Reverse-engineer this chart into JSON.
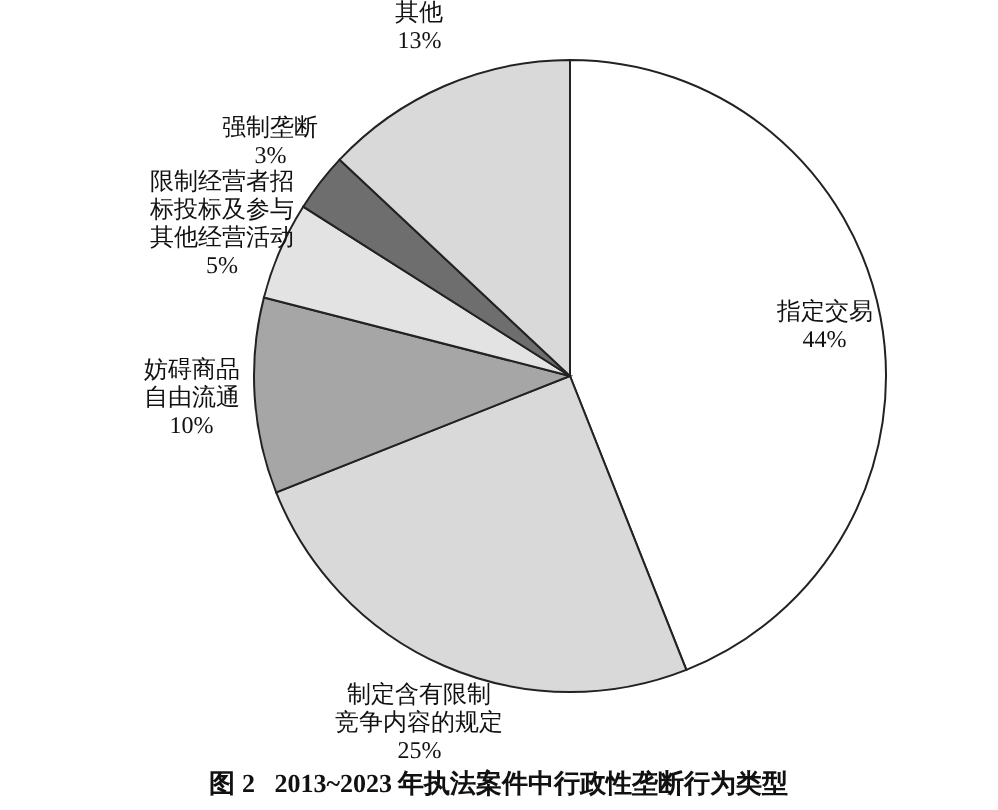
{
  "chart_data": {
    "type": "pie",
    "title": "图 2   2013~2023 年执法案件中行政性垄断行为类型",
    "categories": [
      "指定交易",
      "制定含有限制竞争内容的规定",
      "妨碍商品自由流通",
      "限制经营者招标投标及参与其他经营活动",
      "强制垄断",
      "其他"
    ],
    "values": [
      44,
      25,
      10,
      5,
      3,
      13
    ],
    "value_labels": [
      "44%",
      "25%",
      "10%",
      "5%",
      "3%",
      "13%"
    ],
    "colors": [
      "#ffffff",
      "#d9d9d9",
      "#a6a6a6",
      "#e3e3e3",
      "#6e6e6e",
      "#d9d9d9"
    ]
  }
}
